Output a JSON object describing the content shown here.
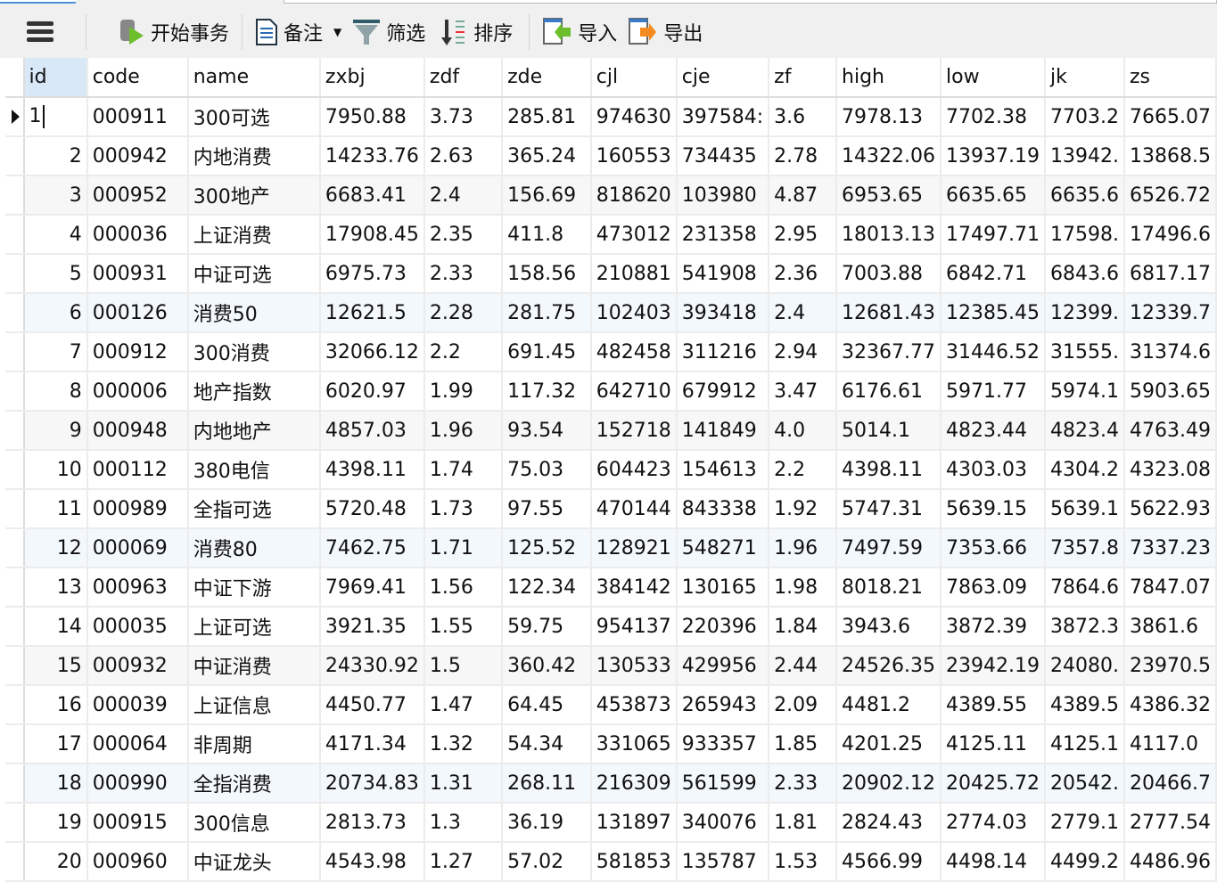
{
  "toolbar": {
    "menu_icon": "hamburger-icon",
    "begin_transaction": "开始事务",
    "note": "备注",
    "filter": "筛选",
    "sort": "排序",
    "import": "导入",
    "export": "导出"
  },
  "grid": {
    "columns": [
      "id",
      "code",
      "name",
      "zxbj",
      "zdf",
      "zde",
      "cjl",
      "cje",
      "zf",
      "high",
      "low",
      "jk",
      "zs"
    ],
    "rows": [
      [
        "1",
        "000911",
        "300可选",
        "7950.88",
        "3.73",
        "285.81",
        "974630",
        "397584:",
        "3.6",
        "7978.13",
        "7702.38",
        "7703.2",
        "7665.07"
      ],
      [
        "2",
        "000942",
        "内地消费",
        "14233.76",
        "2.63",
        "365.24",
        "160553",
        "734435",
        "2.78",
        "14322.06",
        "13937.19",
        "13942.",
        "13868.5"
      ],
      [
        "3",
        "000952",
        "300地产",
        "6683.41",
        "2.4",
        "156.69",
        "818620",
        "103980",
        "4.87",
        "6953.65",
        "6635.65",
        "6635.6",
        "6526.72"
      ],
      [
        "4",
        "000036",
        "上证消费",
        "17908.45",
        "2.35",
        "411.8",
        "473012",
        "231358",
        "2.95",
        "18013.13",
        "17497.71",
        "17598.",
        "17496.6"
      ],
      [
        "5",
        "000931",
        "中证可选",
        "6975.73",
        "2.33",
        "158.56",
        "210881",
        "541908",
        "2.36",
        "7003.88",
        "6842.71",
        "6843.6",
        "6817.17"
      ],
      [
        "6",
        "000126",
        "消费50",
        "12621.5",
        "2.28",
        "281.75",
        "102403",
        "393418",
        "2.4",
        "12681.43",
        "12385.45",
        "12399.",
        "12339.7"
      ],
      [
        "7",
        "000912",
        "300消费",
        "32066.12",
        "2.2",
        "691.45",
        "482458",
        "311216",
        "2.94",
        "32367.77",
        "31446.52",
        "31555.",
        "31374.6"
      ],
      [
        "8",
        "000006",
        "地产指数",
        "6020.97",
        "1.99",
        "117.32",
        "642710",
        "679912",
        "3.47",
        "6176.61",
        "5971.77",
        "5974.1",
        "5903.65"
      ],
      [
        "9",
        "000948",
        "内地地产",
        "4857.03",
        "1.96",
        "93.54",
        "152718",
        "141849",
        "4.0",
        "5014.1",
        "4823.44",
        "4823.4",
        "4763.49"
      ],
      [
        "10",
        "000112",
        "380电信",
        "4398.11",
        "1.74",
        "75.03",
        "604423",
        "154613",
        "2.2",
        "4398.11",
        "4303.03",
        "4304.2",
        "4323.08"
      ],
      [
        "11",
        "000989",
        "全指可选",
        "5720.48",
        "1.73",
        "97.55",
        "470144",
        "843338",
        "1.92",
        "5747.31",
        "5639.15",
        "5639.1",
        "5622.93"
      ],
      [
        "12",
        "000069",
        "消费80",
        "7462.75",
        "1.71",
        "125.52",
        "128921",
        "548271",
        "1.96",
        "7497.59",
        "7353.66",
        "7357.8",
        "7337.23"
      ],
      [
        "13",
        "000963",
        "中证下游",
        "7969.41",
        "1.56",
        "122.34",
        "384142",
        "130165",
        "1.98",
        "8018.21",
        "7863.09",
        "7864.6",
        "7847.07"
      ],
      [
        "14",
        "000035",
        "上证可选",
        "3921.35",
        "1.55",
        "59.75",
        "954137",
        "220396",
        "1.84",
        "3943.6",
        "3872.39",
        "3872.3",
        "3861.6"
      ],
      [
        "15",
        "000932",
        "中证消费",
        "24330.92",
        "1.5",
        "360.42",
        "130533",
        "429956",
        "2.44",
        "24526.35",
        "23942.19",
        "24080.",
        "23970.5"
      ],
      [
        "16",
        "000039",
        "上证信息",
        "4450.77",
        "1.47",
        "64.45",
        "453873",
        "265943",
        "2.09",
        "4481.2",
        "4389.55",
        "4389.5",
        "4386.32"
      ],
      [
        "17",
        "000064",
        "非周期",
        "4171.34",
        "1.32",
        "54.34",
        "331065",
        "933357",
        "1.85",
        "4201.25",
        "4125.11",
        "4125.1",
        "4117.0"
      ],
      [
        "18",
        "000990",
        "全指消费",
        "20734.83",
        "1.31",
        "268.11",
        "216309",
        "561599",
        "2.33",
        "20902.12",
        "20425.72",
        "20542.",
        "20466.7"
      ],
      [
        "19",
        "000915",
        "300信息",
        "2813.73",
        "1.3",
        "36.19",
        "131897",
        "340076",
        "1.81",
        "2824.43",
        "2774.03",
        "2779.1",
        "2777.54"
      ],
      [
        "20",
        "000960",
        "中证龙头",
        "4543.98",
        "1.27",
        "57.02",
        "581853",
        "135787",
        "1.53",
        "4566.99",
        "4498.14",
        "4499.2",
        "4486.96"
      ]
    ],
    "current_row_icon": "current-row-arrow-icon"
  }
}
